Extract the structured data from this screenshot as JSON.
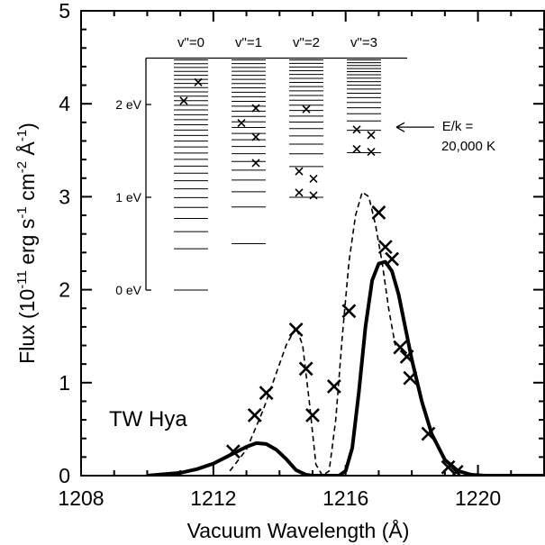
{
  "chart_data": {
    "type": "line",
    "xlabel": "Vacuum Wavelength (Å)",
    "ylabel": "Flux (10^-11 erg s^-1 cm^-2 Å^-1)",
    "xlim": [
      1208,
      1222
    ],
    "ylim": [
      0,
      5
    ],
    "xticks": [
      1208,
      1212,
      1216,
      1220
    ],
    "xtick_labels": [
      "1208",
      "1212",
      "1216",
      "1220"
    ],
    "yticks": [
      0,
      1,
      2,
      3,
      4,
      5
    ],
    "ytick_labels": [
      "0",
      "1",
      "2",
      "3",
      "4",
      "5"
    ],
    "grid": false,
    "annotation": "TW Hya",
    "series": [
      {
        "style": "solid",
        "x": [
          1210.0,
          1211.0,
          1211.5,
          1212.0,
          1212.5,
          1213.0,
          1213.3,
          1213.6,
          1213.9,
          1214.2,
          1214.5,
          1214.8,
          1215.0,
          1215.2,
          1215.5,
          1215.8,
          1216.0,
          1216.2,
          1216.4,
          1216.6,
          1216.8,
          1217.0,
          1217.2,
          1217.4,
          1217.6,
          1217.8,
          1218.0,
          1218.3,
          1218.6,
          1219.0,
          1219.4,
          1219.8,
          1220.2,
          1221.0,
          1222.0
        ],
        "y": [
          0.0,
          0.03,
          0.07,
          0.13,
          0.22,
          0.31,
          0.35,
          0.34,
          0.28,
          0.18,
          0.06,
          0.01,
          0.0,
          0.0,
          0.0,
          0.0,
          0.05,
          0.3,
          0.9,
          1.6,
          2.1,
          2.28,
          2.3,
          2.2,
          1.95,
          1.6,
          1.25,
          0.8,
          0.45,
          0.17,
          0.05,
          0.01,
          0.0,
          0.0,
          0.0
        ]
      },
      {
        "style": "dashed",
        "x": [
          1212.5,
          1213.0,
          1213.5,
          1213.9,
          1214.2,
          1214.5,
          1214.7,
          1214.9,
          1215.1,
          1215.3,
          1215.5,
          1215.7,
          1215.9,
          1216.1,
          1216.3,
          1216.5,
          1216.7,
          1216.9,
          1217.1,
          1217.3,
          1217.5
        ],
        "y": [
          0.05,
          0.28,
          0.7,
          1.1,
          1.4,
          1.6,
          1.4,
          0.8,
          0.12,
          0.0,
          0.05,
          0.6,
          1.5,
          2.3,
          2.8,
          3.05,
          3.0,
          2.7,
          2.3,
          1.8,
          1.4
        ]
      }
    ],
    "points": [
      {
        "x": 1212.6,
        "y": 0.26
      },
      {
        "x": 1213.25,
        "y": 0.65
      },
      {
        "x": 1213.6,
        "y": 0.89
      },
      {
        "x": 1214.5,
        "y": 1.57
      },
      {
        "x": 1214.8,
        "y": 1.15
      },
      {
        "x": 1215.0,
        "y": 0.65
      },
      {
        "x": 1215.65,
        "y": 0.96
      },
      {
        "x": 1216.1,
        "y": 1.77
      },
      {
        "x": 1217.0,
        "y": 2.83
      },
      {
        "x": 1217.2,
        "y": 2.46
      },
      {
        "x": 1217.4,
        "y": 2.33
      },
      {
        "x": 1217.65,
        "y": 1.38
      },
      {
        "x": 1217.85,
        "y": 1.28
      },
      {
        "x": 1217.95,
        "y": 1.05
      },
      {
        "x": 1218.5,
        "y": 0.45
      },
      {
        "x": 1219.1,
        "y": 0.09
      },
      {
        "x": 1219.35,
        "y": 0.04
      }
    ],
    "inset": {
      "type": "energy-level-diagram",
      "columns": [
        "v\"=0",
        "v\"=1",
        "v\"=2",
        "v\"=3"
      ],
      "ylim": [
        0,
        2.5
      ],
      "ytick_labels": [
        "0 eV",
        "1 eV",
        "2 eV"
      ],
      "yticks": [
        0,
        1,
        2
      ],
      "levels": [
        {
          "min": 0.0,
          "max": 2.48,
          "count": 32
        },
        {
          "min": 0.5,
          "max": 2.48,
          "count": 26
        },
        {
          "min": 1.0,
          "max": 2.48,
          "count": 21
        },
        {
          "min": 1.48,
          "max": 2.48,
          "count": 18
        }
      ],
      "markers": [
        {
          "col": 0,
          "e": 2.24,
          "side": 1
        },
        {
          "col": 0,
          "e": 2.04,
          "side": -1
        },
        {
          "col": 1,
          "e": 1.96,
          "side": 1
        },
        {
          "col": 1,
          "e": 1.8,
          "side": -1
        },
        {
          "col": 1,
          "e": 1.65,
          "side": 1
        },
        {
          "col": 1,
          "e": 1.37,
          "side": 1
        },
        {
          "col": 2,
          "e": 1.95,
          "side": 0
        },
        {
          "col": 2,
          "e": 1.28,
          "side": -1
        },
        {
          "col": 2,
          "e": 1.2,
          "side": 1
        },
        {
          "col": 2,
          "e": 1.05,
          "side": -1
        },
        {
          "col": 2,
          "e": 1.02,
          "side": 1
        },
        {
          "col": 3,
          "e": 1.73,
          "side": -1
        },
        {
          "col": 3,
          "e": 1.67,
          "side": 1
        },
        {
          "col": 3,
          "e": 1.52,
          "side": -1
        },
        {
          "col": 3,
          "e": 1.49,
          "side": 1
        }
      ],
      "arrow_label_line1": "E/k =",
      "arrow_label_line2": "20,000 K",
      "arrow_level": 1.95
    }
  }
}
